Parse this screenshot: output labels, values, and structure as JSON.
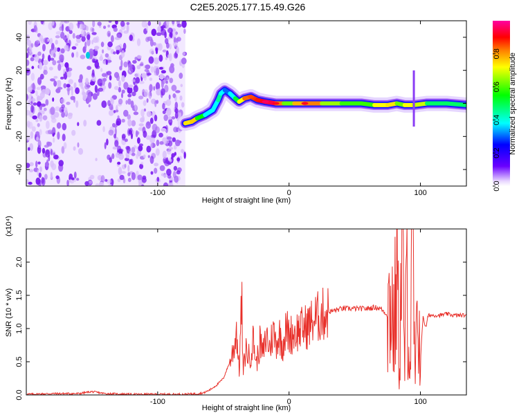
{
  "title": "C2E5.2025.177.15.49.G26",
  "chart_data": [
    {
      "type": "heatmap",
      "xlabel": "Height of straight line (km)",
      "ylabel": "Frequency (Hz)",
      "xlim": [
        -200,
        135
      ],
      "ylim": [
        -50,
        50
      ],
      "x_ticks": [
        -100,
        0,
        100
      ],
      "x_tick_labels": [
        "-100",
        "0",
        "100"
      ],
      "y_ticks": [
        -40,
        -20,
        0,
        20,
        40
      ],
      "y_tick_labels": [
        "-40",
        "-20",
        "0",
        "20",
        "40"
      ],
      "noise_region_x": [
        -200,
        -79
      ],
      "signal_trace": [
        {
          "x": -79,
          "y": -12,
          "v": 0.55
        },
        {
          "x": -74,
          "y": -11,
          "v": 0.75
        },
        {
          "x": -70,
          "y": -9,
          "v": 0.6
        },
        {
          "x": -64,
          "y": -7,
          "v": 0.4
        },
        {
          "x": -58,
          "y": -4,
          "v": 0.35
        },
        {
          "x": -54,
          "y": 2,
          "v": 0.4
        },
        {
          "x": -52,
          "y": 6,
          "v": 0.45
        },
        {
          "x": -49,
          "y": 8,
          "v": 0.3
        },
        {
          "x": -45,
          "y": 6,
          "v": 0.3
        },
        {
          "x": -41,
          "y": 3,
          "v": 0.45
        },
        {
          "x": -38,
          "y": 1,
          "v": 0.5
        },
        {
          "x": -34,
          "y": 3,
          "v": 0.75
        },
        {
          "x": -29,
          "y": 4,
          "v": 0.8
        },
        {
          "x": -24,
          "y": 2,
          "v": 0.85
        },
        {
          "x": -18,
          "y": 1,
          "v": 0.95
        },
        {
          "x": -10,
          "y": 0,
          "v": 0.9
        },
        {
          "x": -4,
          "y": 0,
          "v": 0.6
        },
        {
          "x": 4,
          "y": 0,
          "v": 0.5
        },
        {
          "x": 12,
          "y": 0,
          "v": 0.9
        },
        {
          "x": 25,
          "y": 0,
          "v": 0.6
        },
        {
          "x": 40,
          "y": 0,
          "v": 0.55
        },
        {
          "x": 55,
          "y": 0,
          "v": 0.5
        },
        {
          "x": 65,
          "y": -1,
          "v": 0.55
        },
        {
          "x": 75,
          "y": -1,
          "v": 0.7
        },
        {
          "x": 82,
          "y": 0,
          "v": 0.6
        },
        {
          "x": 88,
          "y": -1,
          "v": 0.5
        },
        {
          "x": 95,
          "y": -1,
          "v": 0.75
        },
        {
          "x": 105,
          "y": 0,
          "v": 0.45
        },
        {
          "x": 120,
          "y": 0,
          "v": 0.45
        },
        {
          "x": 135,
          "y": -1,
          "v": 0.45
        }
      ],
      "colorbar": {
        "label": "Normalized spectral amplitude",
        "range": [
          0,
          1
        ],
        "ticks": [
          0.0,
          0.2,
          0.4,
          0.6,
          0.8
        ],
        "tick_labels": [
          "0.0",
          "0.2",
          "0.4",
          "0.6",
          "0.8"
        ],
        "colormap": [
          "#ffffff",
          "#6a00ff",
          "#0000ff",
          "#00ffff",
          "#00ff00",
          "#ffff00",
          "#ff8000",
          "#ff0000",
          "#ff00a0"
        ]
      }
    },
    {
      "type": "line",
      "xlabel": "Height of straight line (km)",
      "ylabel": "SNR (10 * v/v)",
      "scale_label": "(x10⁴)",
      "xlim": [
        -200,
        135
      ],
      "ylim": [
        0,
        2.5
      ],
      "x_ticks": [
        -100,
        0,
        100
      ],
      "x_tick_labels": [
        "-100",
        "0",
        "100"
      ],
      "y_ticks": [
        0.0,
        0.5,
        1.0,
        1.5,
        2.0
      ],
      "y_tick_labels": [
        "0.0",
        "0.5",
        "1.0",
        "1.5",
        "2.0"
      ],
      "series": [
        {
          "color": "#e8302a",
          "x": [
            -200,
            -180,
            -160,
            -150,
            -140,
            -120,
            -100,
            -80,
            -70,
            -65,
            -60,
            -55,
            -50,
            -45,
            -42,
            -40,
            -38,
            -36,
            -35,
            -33,
            -30,
            -27,
            -25,
            -22,
            -20,
            -17,
            -15,
            -12,
            -10,
            -7,
            -5,
            -2,
            0,
            5,
            10,
            15,
            20,
            25,
            30,
            40,
            50,
            60,
            65,
            70,
            75,
            78,
            80,
            82,
            84,
            86,
            88,
            90,
            92,
            94,
            96,
            98,
            100,
            102,
            104,
            106,
            110,
            115,
            120,
            125,
            130,
            135
          ],
          "y": [
            0.01,
            0.02,
            0.02,
            0.05,
            0.02,
            0.01,
            0.01,
            0.01,
            0.02,
            0.03,
            0.08,
            0.15,
            0.25,
            0.5,
            0.7,
            1.0,
            0.35,
            1.45,
            0.3,
            0.7,
            0.55,
            0.85,
            0.45,
            0.8,
            0.6,
            0.9,
            0.7,
            0.95,
            0.8,
            0.9,
            0.75,
            1.0,
            0.9,
            0.95,
            1.0,
            1.05,
            1.15,
            1.2,
            1.25,
            1.3,
            1.3,
            1.3,
            1.32,
            1.3,
            1.2,
            1.5,
            0.8,
            2.2,
            0.3,
            2.45,
            0.4,
            2.0,
            0.2,
            2.3,
            0.1,
            1.5,
            0.5,
            1.2,
            1.0,
            1.2,
            1.2,
            1.2,
            1.22,
            1.2,
            1.2,
            1.2
          ]
        }
      ]
    }
  ]
}
